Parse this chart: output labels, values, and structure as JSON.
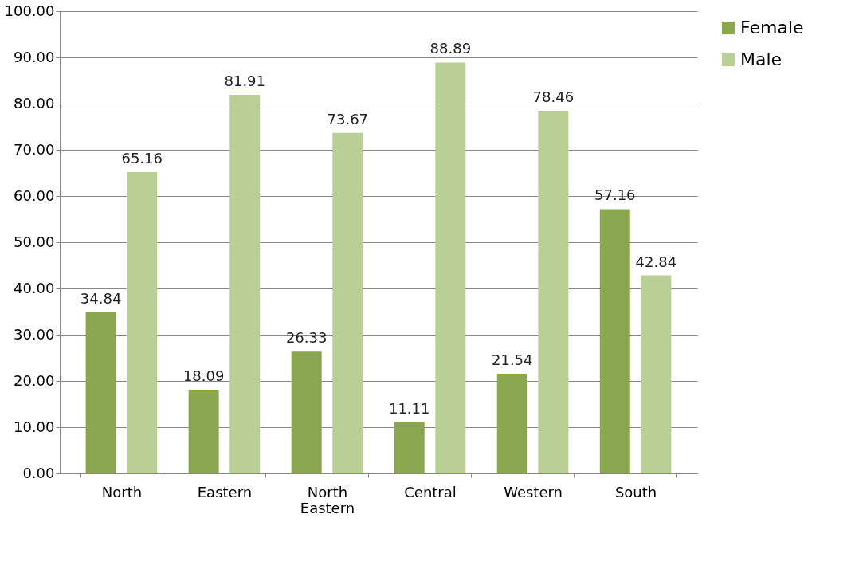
{
  "chart_data": {
    "type": "bar",
    "categories": [
      "North",
      "Eastern",
      "North Eastern",
      "Central",
      "Western",
      "South"
    ],
    "series": [
      {
        "name": "Female",
        "color": "#8aa64e",
        "values": [
          34.84,
          18.09,
          26.33,
          11.11,
          21.54,
          57.16
        ]
      },
      {
        "name": "Male",
        "color": "#b9cf96",
        "values": [
          65.16,
          81.91,
          73.67,
          88.89,
          78.46,
          42.84
        ]
      }
    ],
    "ylim": [
      0,
      100
    ],
    "yticks": [
      {
        "value": 0,
        "label": "0.00"
      },
      {
        "value": 10,
        "label": "10.00"
      },
      {
        "value": 20,
        "label": "20.00"
      },
      {
        "value": 30,
        "label": "30.00"
      },
      {
        "value": 40,
        "label": "40.00"
      },
      {
        "value": 50,
        "label": "50.00"
      },
      {
        "value": 60,
        "label": "60.00"
      },
      {
        "value": 70,
        "label": "70.00"
      },
      {
        "value": 80,
        "label": "80.00"
      },
      {
        "value": 90,
        "label": "90.00"
      },
      {
        "value": 100,
        "label": "100.00"
      }
    ],
    "grid": "y",
    "legend": "right",
    "data_labels": true
  }
}
